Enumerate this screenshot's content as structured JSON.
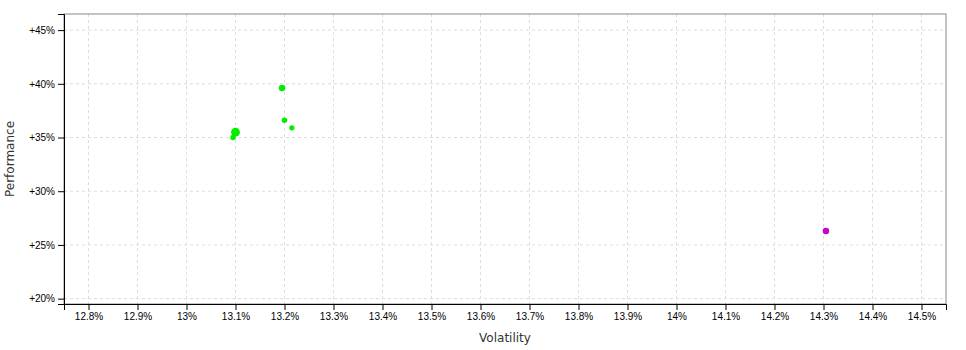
{
  "chart_data": {
    "type": "scatter",
    "xlabel": "Volatility",
    "ylabel": "Performance",
    "xlim": [
      12.75,
      14.55
    ],
    "ylim": [
      19.5,
      46.5
    ],
    "xticks": [
      {
        "value": 12.8,
        "label": "12.8%"
      },
      {
        "value": 12.9,
        "label": "12.9%"
      },
      {
        "value": 13.0,
        "label": "13%"
      },
      {
        "value": 13.1,
        "label": "13.1%"
      },
      {
        "value": 13.2,
        "label": "13.2%"
      },
      {
        "value": 13.3,
        "label": "13.3%"
      },
      {
        "value": 13.4,
        "label": "13.4%"
      },
      {
        "value": 13.5,
        "label": "13.5%"
      },
      {
        "value": 13.6,
        "label": "13.6%"
      },
      {
        "value": 13.7,
        "label": "13.7%"
      },
      {
        "value": 13.8,
        "label": "13.8%"
      },
      {
        "value": 13.9,
        "label": "13.9%"
      },
      {
        "value": 14.0,
        "label": "14%"
      },
      {
        "value": 14.1,
        "label": "14.1%"
      },
      {
        "value": 14.2,
        "label": "14.2%"
      },
      {
        "value": 14.3,
        "label": "14.3%"
      },
      {
        "value": 14.4,
        "label": "14.4%"
      },
      {
        "value": 14.5,
        "label": "14.5%"
      }
    ],
    "yticks": [
      {
        "value": 20,
        "label": "+20%"
      },
      {
        "value": 25,
        "label": "+25%"
      },
      {
        "value": 30,
        "label": "+30%"
      },
      {
        "value": 35,
        "label": "+35%"
      },
      {
        "value": 40,
        "label": "+40%"
      },
      {
        "value": 45,
        "label": "+45%"
      }
    ],
    "grid": true,
    "series": [
      {
        "color": "#00ee00",
        "x": [
          13.195,
          13.2,
          13.215,
          13.1,
          13.095
        ],
        "values": [
          39.6,
          36.6,
          35.9,
          35.5,
          35.0
        ],
        "sizes": [
          22,
          16,
          14,
          40,
          16
        ]
      },
      {
        "color": "#cc00cc",
        "x": [
          14.305
        ],
        "values": [
          26.3
        ],
        "sizes": [
          22
        ]
      }
    ]
  }
}
